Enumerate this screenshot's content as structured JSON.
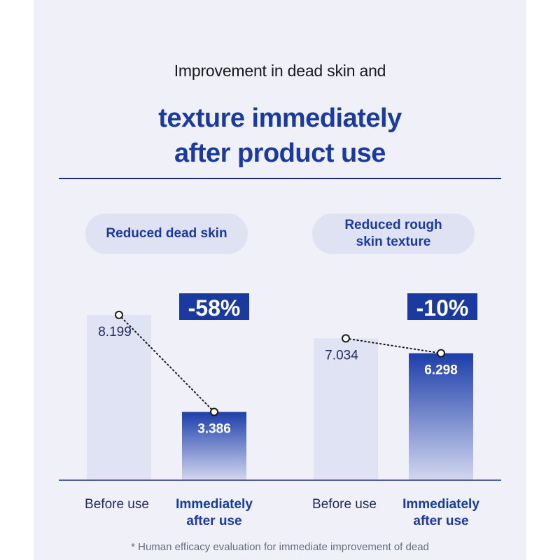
{
  "heading": {
    "intro": "Improvement in dead skin and",
    "title_line1": "texture immediately",
    "title_line2": "after product use"
  },
  "footnote": "* Human efficacy evaluation for immediate improvement of dead",
  "colors": {
    "accent": "#1a3aa0",
    "before_bar": "#e0e3f3",
    "after_bar_top": "#1d3eaa",
    "after_bar_bottom": "#d2d7ef",
    "panel_bg": "#eff0f8"
  },
  "chart_data": [
    {
      "type": "bar",
      "title": "Reduced dead skin",
      "categories": [
        "Before use",
        "Immediately after use"
      ],
      "values": [
        8.199,
        3.386
      ],
      "change_label": "-58%",
      "ylim": [
        0,
        10
      ],
      "legend": "none",
      "grid": false
    },
    {
      "type": "bar",
      "title": "Reduced rough\nskin texture",
      "categories": [
        "Before use",
        "Immediately after use"
      ],
      "values": [
        7.034,
        6.298
      ],
      "change_label": "-10%",
      "ylim": [
        0,
        10
      ],
      "legend": "none",
      "grid": false
    }
  ]
}
